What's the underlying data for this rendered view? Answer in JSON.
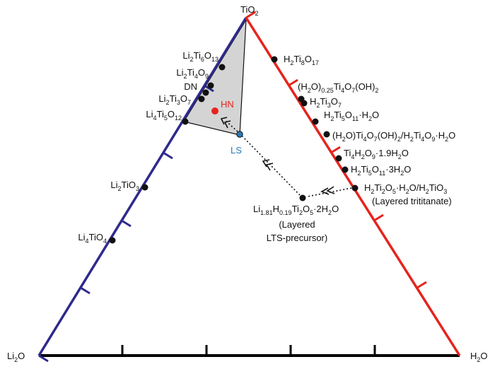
{
  "diagram": {
    "vertices": {
      "top": [
        "TiO",
        "2"
      ],
      "left": [
        "Li",
        "2",
        "O"
      ],
      "right": [
        "H",
        "2",
        "O"
      ]
    },
    "left_edge_labels": [
      [
        "Li",
        "2",
        "Ti",
        "6",
        "O",
        "13"
      ],
      [
        "Li",
        "2",
        "Ti",
        "4",
        "O",
        "9"
      ],
      [
        "DN"
      ],
      [
        "Li",
        "2",
        "Ti",
        "3",
        "O",
        "7"
      ],
      [
        "Li",
        "4",
        "Ti",
        "5",
        "O",
        "12"
      ],
      [
        "Li",
        "2",
        "TiO",
        "3"
      ],
      [
        "Li",
        "4",
        "TiO",
        "4"
      ]
    ],
    "right_edge_labels": [
      [
        "H",
        "2",
        "Ti",
        "8",
        "O",
        "17"
      ],
      [
        "(H",
        "2",
        "O)",
        "0.25",
        "Ti",
        "4",
        "O",
        "7",
        "(OH)",
        "2"
      ],
      [
        "H",
        "2",
        "Ti",
        "3",
        "O",
        "7"
      ],
      [
        "H",
        "2",
        "Ti",
        "5",
        "O",
        "11",
        "·H",
        "2",
        "O"
      ],
      [
        "(H",
        "2",
        "O)Ti",
        "4",
        "O",
        "7",
        "(OH)",
        "2",
        "/H",
        "2",
        "Ti",
        "4",
        "O",
        "9",
        "·H",
        "2",
        "O"
      ],
      [
        "Ti",
        "4",
        "H",
        "2",
        "O",
        "9",
        "·1.9H",
        "2",
        "O"
      ],
      [
        "H",
        "2",
        "Ti",
        "5",
        "O",
        "11",
        "·3H",
        "2",
        "O"
      ],
      [
        "H",
        "2",
        "Ti",
        "2",
        "O",
        "5",
        "·H",
        "2",
        "O/H",
        "2",
        "TiO",
        "3"
      ]
    ],
    "layered_trititanate": "(Layered trititanate)",
    "precursor": {
      "formula": [
        "Li",
        "1.81",
        "H",
        "0.19",
        "Ti",
        "2",
        "O",
        "5",
        "·2H",
        "2",
        "O"
      ],
      "line1": "(Layered",
      "line2": "LTS-precursor)"
    },
    "hn_label": "HN",
    "ls_label": "LS",
    "colors": {
      "left_edge": "#2e2a8c",
      "right_edge": "#e5241d",
      "bottom_edge": "#000000",
      "region_fill": "#d4d4d4",
      "hn_point": "#e5241d",
      "ls_point": "#2a7ab8"
    }
  }
}
